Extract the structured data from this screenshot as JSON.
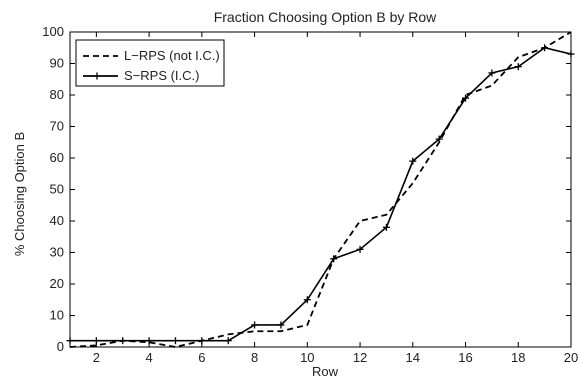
{
  "chart_data": {
    "type": "line",
    "title": "Fraction Choosing Option B by Row",
    "xlabel": "Row",
    "ylabel": "% Choosing Option B",
    "xlim": [
      1,
      20
    ],
    "ylim": [
      0,
      100
    ],
    "xticks": [
      2,
      4,
      6,
      8,
      10,
      12,
      14,
      16,
      18,
      20
    ],
    "yticks": [
      0,
      10,
      20,
      30,
      40,
      50,
      60,
      70,
      80,
      90,
      100
    ],
    "grid": false,
    "legend_position": "top-left",
    "x": [
      1,
      2,
      3,
      4,
      5,
      6,
      7,
      8,
      9,
      10,
      11,
      12,
      13,
      14,
      15,
      16,
      17,
      18,
      19,
      20
    ],
    "series": [
      {
        "name": "L−RPS (not I.C.)",
        "style": "dashed",
        "marker": "none",
        "color": "#000000",
        "values": [
          0,
          0.5,
          2,
          1.5,
          0,
          2,
          4,
          5,
          5,
          7,
          28,
          40,
          42,
          52,
          65,
          80,
          83,
          92,
          95,
          100
        ]
      },
      {
        "name": "S−RPS (I.C.)",
        "style": "solid",
        "marker": "plus",
        "color": "#000000",
        "values": [
          2,
          2,
          2,
          2,
          2,
          2,
          2,
          7,
          7,
          15,
          28,
          31,
          38,
          59,
          66,
          79,
          87,
          89,
          95,
          93
        ]
      }
    ]
  }
}
